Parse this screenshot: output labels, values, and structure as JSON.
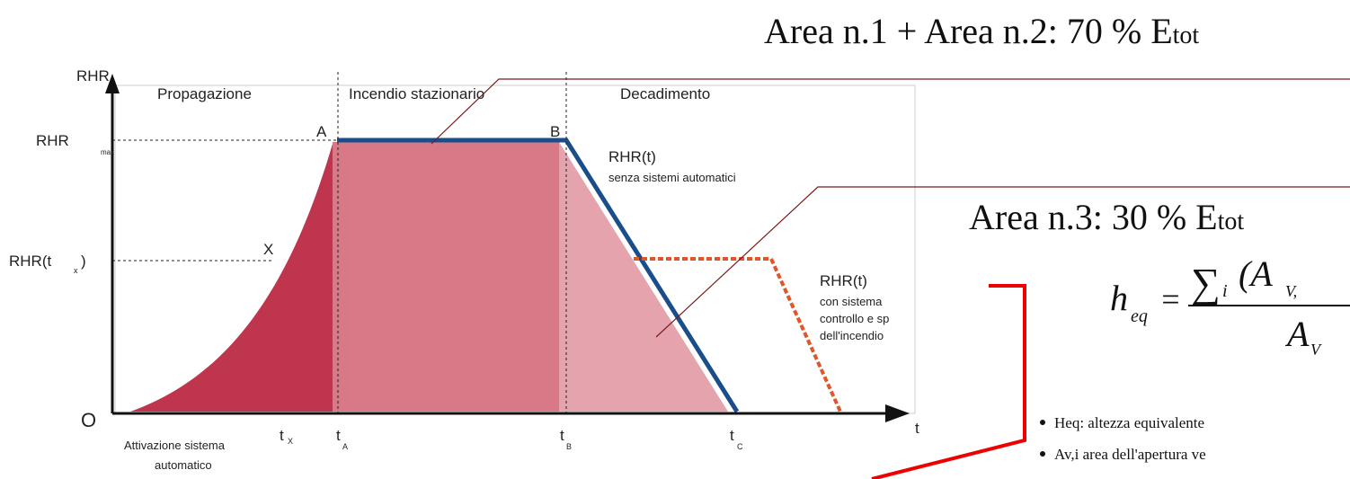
{
  "header": {
    "line1": "Area n.1 + Area n.2: 70 % E",
    "line1_sub": "tot",
    "line2": "Area n.3: 30 % E",
    "line2_sub": "tot"
  },
  "diagram": {
    "y_axis": "RHR",
    "x_axis": "t",
    "origin": "O",
    "phases": [
      "Propagazione",
      "Incendio stazionario",
      "Decadimento"
    ],
    "y_labels": {
      "rhr_max": "RHR",
      "rhr_max_sub": "max",
      "rhr_tx": "RHR(t",
      "rhr_tx_sub": "x",
      "rhr_tx_close": ")"
    },
    "points": {
      "a": "A",
      "b": "B",
      "x": "X"
    },
    "x_labels": [
      {
        "t": "t",
        "sub": "X"
      },
      {
        "t": "t",
        "sub": "A"
      },
      {
        "t": "t",
        "sub": "B"
      },
      {
        "t": "t",
        "sub": "C"
      }
    ],
    "curve1": {
      "title": "RHR(t)",
      "note": "senza sistemi automatici"
    },
    "curve2": {
      "title": "RHR(t)",
      "lines": [
        "con sistema",
        "controllo e sp",
        "dell'incendio"
      ]
    },
    "activation": [
      "Attivazione sistema",
      "automatico"
    ]
  },
  "formula": {
    "lhs": "h",
    "lhs_sub": "eq",
    "equals": "=",
    "sum": "∑",
    "sum_sub": "i",
    "num": "(A",
    "num_sub": "V,",
    "den": "A",
    "den_sub": "V"
  },
  "bullets": [
    "Heq: altezza equivalente",
    "Av,i area dell'apertura ve"
  ]
}
